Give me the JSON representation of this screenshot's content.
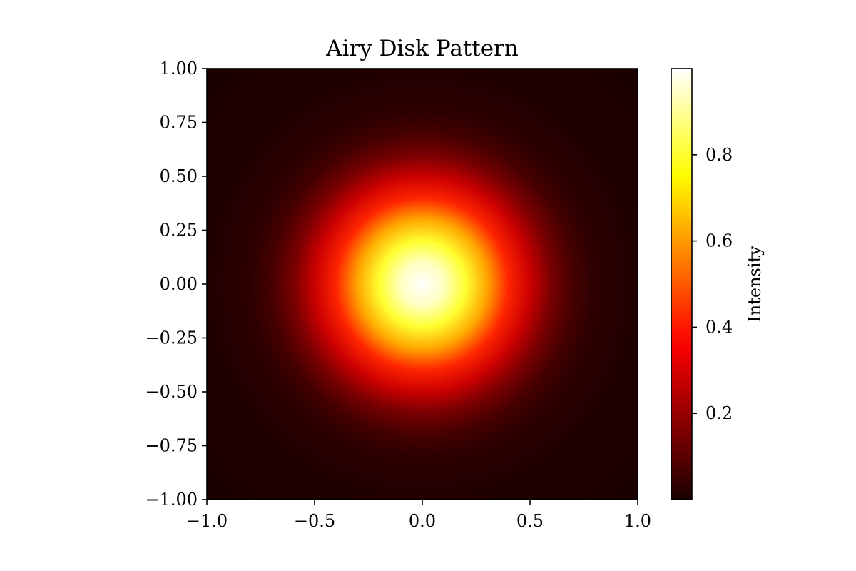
{
  "chart_data": {
    "type": "heatmap",
    "title": "Airy Disk Pattern",
    "xlabel": "",
    "ylabel": "",
    "x_ticks": [
      "−1.0",
      "−0.5",
      "0.0",
      "0.5",
      "1.0"
    ],
    "x_tick_values": [
      -1.0,
      -0.5,
      0.0,
      0.5,
      1.0
    ],
    "y_ticks": [
      "1.00",
      "0.75",
      "0.50",
      "0.25",
      "0.00",
      "−0.25",
      "−0.50",
      "−0.75",
      "−1.00"
    ],
    "y_tick_values": [
      1.0,
      0.75,
      0.5,
      0.25,
      0.0,
      -0.25,
      -0.5,
      -0.75,
      -1.0
    ],
    "xlim": [
      -1.0,
      1.0
    ],
    "ylim": [
      -1.0,
      1.0
    ],
    "grid": false,
    "colormap": "hot",
    "peak": {
      "x": 0.0,
      "y": 0.0,
      "value": 1.0
    },
    "colorbar": {
      "label": "Intensity",
      "ticks": [
        "0.2",
        "0.4",
        "0.6",
        "0.8"
      ],
      "tick_values": [
        0.2,
        0.4,
        0.6,
        0.8
      ],
      "range": [
        0.0,
        1.0
      ],
      "placement": "right"
    },
    "radial_profile": [
      {
        "r": 0.0,
        "intensity": 1.0
      },
      {
        "r": 0.1,
        "intensity": 0.94
      },
      {
        "r": 0.2,
        "intensity": 0.8
      },
      {
        "r": 0.3,
        "intensity": 0.62
      },
      {
        "r": 0.4,
        "intensity": 0.42
      },
      {
        "r": 0.5,
        "intensity": 0.28
      },
      {
        "r": 0.6,
        "intensity": 0.15
      },
      {
        "r": 0.7,
        "intensity": 0.07
      },
      {
        "r": 0.8,
        "intensity": 0.03
      },
      {
        "r": 1.0,
        "intensity": 0.01
      },
      {
        "r": 1.42,
        "intensity": 0.0
      }
    ]
  }
}
